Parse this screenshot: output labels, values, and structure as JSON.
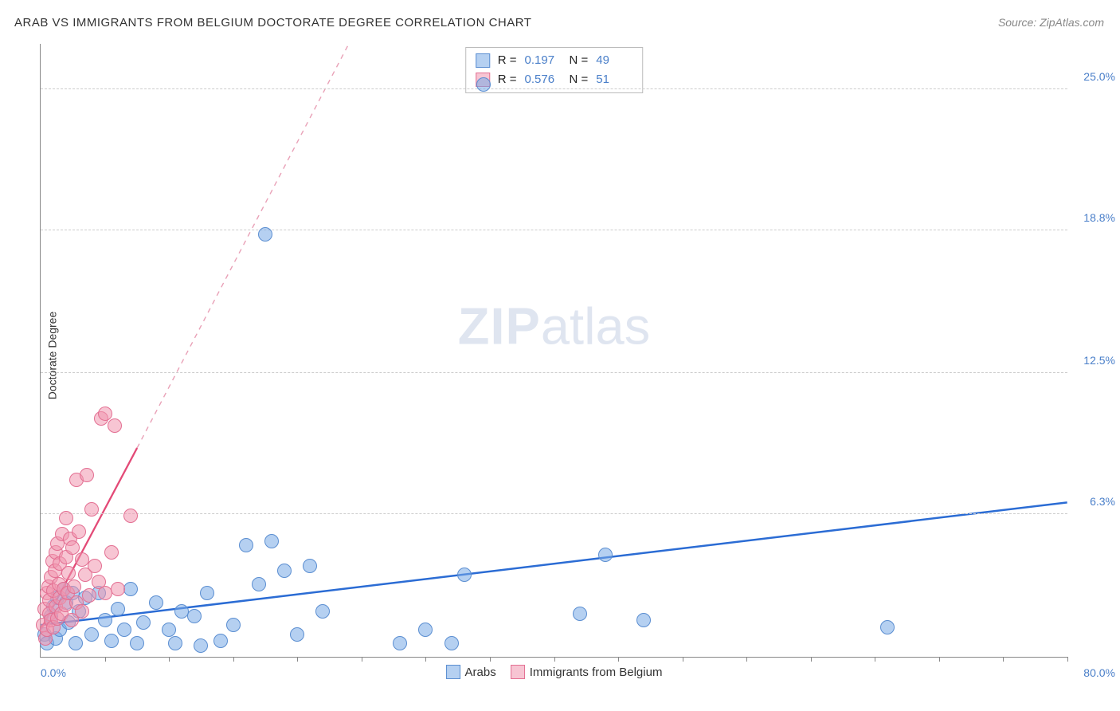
{
  "title": "ARAB VS IMMIGRANTS FROM BELGIUM DOCTORATE DEGREE CORRELATION CHART",
  "source": "Source: ZipAtlas.com",
  "watermark": {
    "zip": "ZIP",
    "atlas": "atlas"
  },
  "chart": {
    "type": "scatter",
    "ylabel": "Doctorate Degree",
    "xlim": [
      0,
      80
    ],
    "ylim": [
      0,
      27
    ],
    "yticks": [
      {
        "v": 6.3,
        "label": "6.3%"
      },
      {
        "v": 12.5,
        "label": "12.5%"
      },
      {
        "v": 18.8,
        "label": "18.8%"
      },
      {
        "v": 25.0,
        "label": "25.0%"
      }
    ],
    "xticks_minor": [
      5,
      10,
      15,
      20,
      25,
      30,
      35,
      40,
      45,
      50,
      55,
      60,
      65,
      70,
      75,
      80
    ],
    "xaxis_min_label": "0.0%",
    "xaxis_max_label": "80.0%",
    "grid_color": "#cccccc",
    "axis_color": "#888888",
    "background_color": "#ffffff",
    "series": [
      {
        "name": "Arabs",
        "color_fill": "rgba(120,170,230,0.55)",
        "color_stroke": "#5b8ed1",
        "marker_radius": 9,
        "R": "0.197",
        "N": "49",
        "trend": {
          "x1": 0,
          "y1": 1.4,
          "x2": 80,
          "y2": 6.8,
          "color": "#2b6cd4",
          "width": 2.5,
          "dash": "none"
        },
        "points": [
          [
            0.3,
            1.0
          ],
          [
            0.5,
            0.6
          ],
          [
            0.8,
            1.8
          ],
          [
            1.0,
            2.2
          ],
          [
            1.2,
            0.8
          ],
          [
            1.3,
            2.6
          ],
          [
            1.5,
            1.2
          ],
          [
            1.8,
            3.0
          ],
          [
            2.0,
            2.4
          ],
          [
            2.2,
            1.5
          ],
          [
            2.5,
            2.8
          ],
          [
            2.7,
            0.6
          ],
          [
            3.0,
            2.0
          ],
          [
            3.5,
            2.6
          ],
          [
            4.0,
            1.0
          ],
          [
            4.5,
            2.8
          ],
          [
            5.0,
            1.6
          ],
          [
            5.5,
            0.7
          ],
          [
            6.0,
            2.1
          ],
          [
            6.5,
            1.2
          ],
          [
            7.0,
            3.0
          ],
          [
            7.5,
            0.6
          ],
          [
            8.0,
            1.5
          ],
          [
            9.0,
            2.4
          ],
          [
            10.0,
            1.2
          ],
          [
            10.5,
            0.6
          ],
          [
            11.0,
            2.0
          ],
          [
            12.0,
            1.8
          ],
          [
            12.5,
            0.5
          ],
          [
            13.0,
            2.8
          ],
          [
            14.0,
            0.7
          ],
          [
            15.0,
            1.4
          ],
          [
            16.0,
            4.9
          ],
          [
            17.0,
            3.2
          ],
          [
            18.0,
            5.1
          ],
          [
            19.0,
            3.8
          ],
          [
            17.5,
            18.6
          ],
          [
            20.0,
            1.0
          ],
          [
            21.0,
            4.0
          ],
          [
            22.0,
            2.0
          ],
          [
            28.0,
            0.6
          ],
          [
            30.0,
            1.2
          ],
          [
            32.0,
            0.6
          ],
          [
            33.0,
            3.6
          ],
          [
            34.5,
            25.2
          ],
          [
            42.0,
            1.9
          ],
          [
            44.0,
            4.5
          ],
          [
            47.0,
            1.6
          ],
          [
            66.0,
            1.3
          ]
        ]
      },
      {
        "name": "Immigrants from Belgium",
        "color_fill": "rgba(240,150,175,0.55)",
        "color_stroke": "#e36f92",
        "marker_radius": 9,
        "R": "0.576",
        "N": "51",
        "trend_solid": {
          "x1": 0,
          "y1": 1.2,
          "x2": 7.5,
          "y2": 9.2,
          "color": "#e34a77",
          "width": 2.3
        },
        "trend_dashed": {
          "x1": 7.5,
          "y1": 9.2,
          "x2": 24,
          "y2": 27,
          "color": "#e9a1b7",
          "width": 1.4,
          "dash": "6,6"
        },
        "points": [
          [
            0.2,
            1.4
          ],
          [
            0.3,
            2.1
          ],
          [
            0.4,
            0.8
          ],
          [
            0.5,
            2.8
          ],
          [
            0.5,
            1.2
          ],
          [
            0.6,
            3.1
          ],
          [
            0.7,
            1.9
          ],
          [
            0.7,
            2.5
          ],
          [
            0.8,
            3.5
          ],
          [
            0.8,
            1.6
          ],
          [
            0.9,
            4.2
          ],
          [
            1.0,
            2.9
          ],
          [
            1.0,
            1.3
          ],
          [
            1.1,
            3.8
          ],
          [
            1.2,
            2.2
          ],
          [
            1.2,
            4.6
          ],
          [
            1.3,
            1.7
          ],
          [
            1.3,
            5.0
          ],
          [
            1.4,
            3.2
          ],
          [
            1.5,
            2.6
          ],
          [
            1.5,
            4.1
          ],
          [
            1.6,
            1.9
          ],
          [
            1.7,
            5.4
          ],
          [
            1.8,
            3.0
          ],
          [
            1.9,
            2.3
          ],
          [
            2.0,
            4.4
          ],
          [
            2.0,
            6.1
          ],
          [
            2.1,
            2.8
          ],
          [
            2.2,
            3.7
          ],
          [
            2.3,
            5.2
          ],
          [
            2.4,
            1.6
          ],
          [
            2.5,
            4.8
          ],
          [
            2.6,
            3.1
          ],
          [
            2.8,
            2.4
          ],
          [
            2.8,
            7.8
          ],
          [
            3.0,
            5.5
          ],
          [
            3.2,
            2.0
          ],
          [
            3.2,
            4.3
          ],
          [
            3.5,
            3.6
          ],
          [
            3.6,
            8.0
          ],
          [
            3.8,
            2.7
          ],
          [
            4.0,
            6.5
          ],
          [
            4.2,
            4.0
          ],
          [
            4.5,
            3.3
          ],
          [
            4.7,
            10.5
          ],
          [
            5.0,
            2.8
          ],
          [
            5.0,
            10.7
          ],
          [
            5.5,
            4.6
          ],
          [
            5.8,
            10.2
          ],
          [
            6.0,
            3.0
          ],
          [
            7.0,
            6.2
          ]
        ]
      }
    ],
    "legend_bottom": [
      {
        "label": "Arabs",
        "fill": "rgba(120,170,230,0.55)",
        "stroke": "#5b8ed1"
      },
      {
        "label": "Immigrants from Belgium",
        "fill": "rgba(240,150,175,0.55)",
        "stroke": "#e36f92"
      }
    ]
  }
}
